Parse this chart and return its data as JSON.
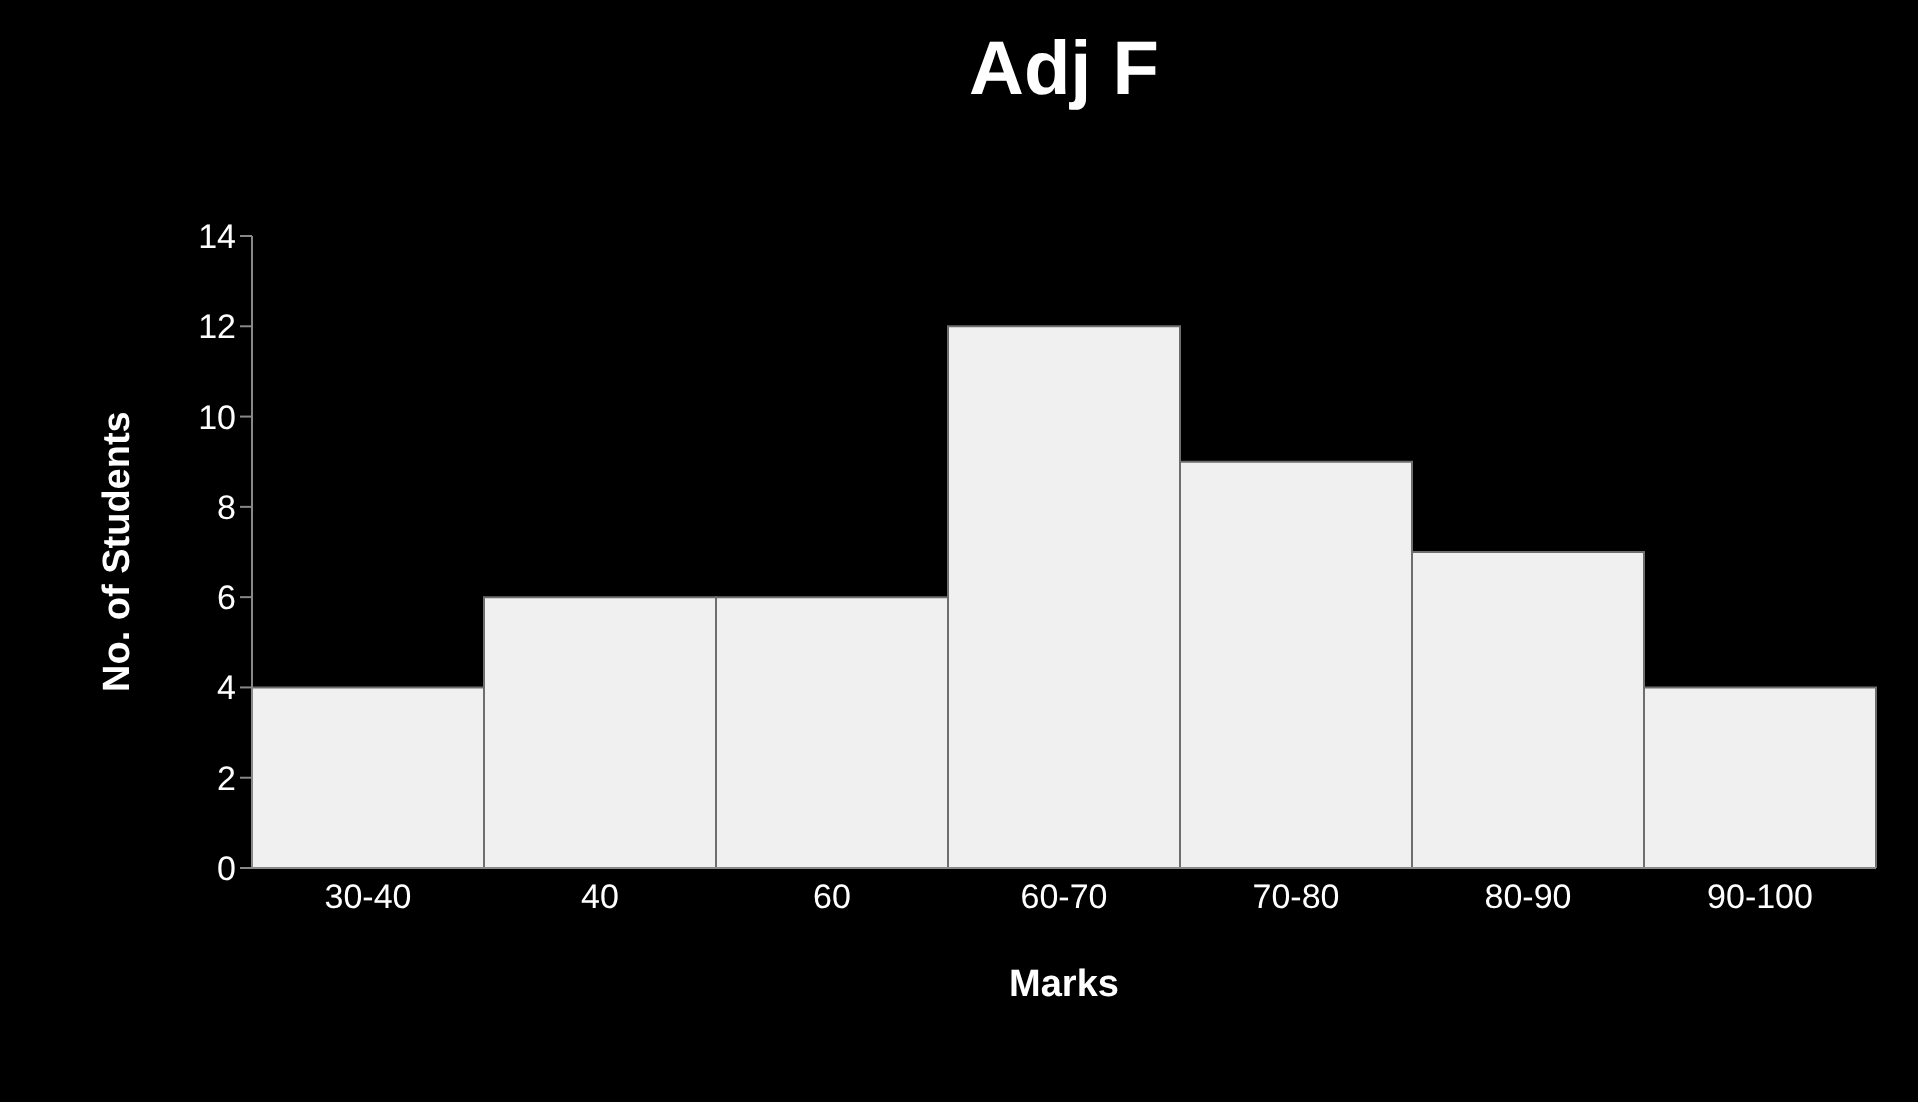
{
  "chart_data": {
    "type": "bar",
    "title": "Adj F",
    "xlabel": "Marks",
    "ylabel": "No. of Students",
    "categories": [
      "30-40",
      "40",
      "60",
      "60-70",
      "70-80",
      "80-90",
      "90-100"
    ],
    "values": [
      4,
      6,
      6,
      12,
      9,
      7,
      4
    ],
    "color": "#f0f0f0",
    "ylim": [
      0,
      14
    ],
    "yticks": [
      0,
      2,
      4,
      6,
      8,
      10,
      12,
      14
    ],
    "grid": false
  }
}
